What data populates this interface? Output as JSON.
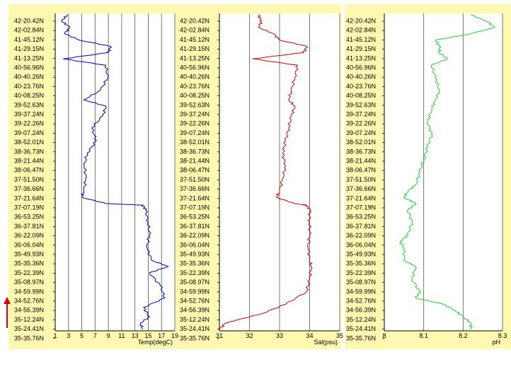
{
  "chart_data": [
    {
      "type": "line",
      "xlabel": "Temp(degC)",
      "xlim": [
        1,
        19
      ],
      "xticks": [
        1,
        3,
        5,
        7,
        9,
        11,
        13,
        15,
        17,
        19
      ],
      "color": "#0000c0",
      "profile": [
        [
          0.0,
          2.8
        ],
        [
          0.02,
          2.0
        ],
        [
          0.04,
          3.2
        ],
        [
          0.06,
          2.4
        ],
        [
          0.08,
          4.6
        ],
        [
          0.1,
          9.3
        ],
        [
          0.12,
          9.0
        ],
        [
          0.14,
          2.2
        ],
        [
          0.16,
          8.6
        ],
        [
          0.2,
          8.9
        ],
        [
          0.24,
          7.8
        ],
        [
          0.27,
          5.3
        ],
        [
          0.29,
          8.6
        ],
        [
          0.32,
          8.2
        ],
        [
          0.36,
          6.5
        ],
        [
          0.4,
          7.2
        ],
        [
          0.44,
          5.8
        ],
        [
          0.48,
          5.4
        ],
        [
          0.52,
          5.6
        ],
        [
          0.56,
          5.3
        ],
        [
          0.58,
          5.0
        ],
        [
          0.6,
          8.7
        ],
        [
          0.605,
          14.2
        ],
        [
          0.62,
          14.6
        ],
        [
          0.66,
          15.0
        ],
        [
          0.7,
          15.2
        ],
        [
          0.74,
          14.8
        ],
        [
          0.78,
          15.5
        ],
        [
          0.8,
          18.0
        ],
        [
          0.82,
          15.2
        ],
        [
          0.86,
          16.8
        ],
        [
          0.9,
          17.5
        ],
        [
          0.93,
          14.3
        ],
        [
          0.96,
          15.2
        ],
        [
          0.98,
          13.8
        ],
        [
          1.0,
          14.2
        ]
      ]
    },
    {
      "type": "line",
      "xlabel": "Sal(psu)",
      "xlim": [
        31,
        35
      ],
      "xticks": [
        31,
        32,
        33,
        34,
        35
      ],
      "color": "#cc0000",
      "profile": [
        [
          0.0,
          32.3
        ],
        [
          0.02,
          32.4
        ],
        [
          0.04,
          32.3
        ],
        [
          0.06,
          32.8
        ],
        [
          0.08,
          33.0
        ],
        [
          0.1,
          33.9
        ],
        [
          0.12,
          33.8
        ],
        [
          0.14,
          32.1
        ],
        [
          0.16,
          33.6
        ],
        [
          0.2,
          33.5
        ],
        [
          0.24,
          33.4
        ],
        [
          0.27,
          33.3
        ],
        [
          0.29,
          33.5
        ],
        [
          0.32,
          33.4
        ],
        [
          0.36,
          33.3
        ],
        [
          0.4,
          33.2
        ],
        [
          0.44,
          33.1
        ],
        [
          0.48,
          33.2
        ],
        [
          0.52,
          33.1
        ],
        [
          0.56,
          33.0
        ],
        [
          0.58,
          32.9
        ],
        [
          0.6,
          33.5
        ],
        [
          0.605,
          33.9
        ],
        [
          0.62,
          34.0
        ],
        [
          0.66,
          34.0
        ],
        [
          0.7,
          34.0
        ],
        [
          0.74,
          33.95
        ],
        [
          0.78,
          34.0
        ],
        [
          0.8,
          34.05
        ],
        [
          0.84,
          34.0
        ],
        [
          0.88,
          33.9
        ],
        [
          0.92,
          33.2
        ],
        [
          0.95,
          32.4
        ],
        [
          0.97,
          31.6
        ],
        [
          0.98,
          31.2
        ],
        [
          1.0,
          31.0
        ]
      ]
    },
    {
      "type": "line",
      "xlabel": "pH",
      "xlim": [
        8,
        8.3
      ],
      "xticks": [
        8,
        8.1,
        8.2,
        8.3
      ],
      "color": "#22cc33",
      "profile": [
        [
          0.0,
          8.22
        ],
        [
          0.02,
          8.26
        ],
        [
          0.04,
          8.28
        ],
        [
          0.06,
          8.22
        ],
        [
          0.08,
          8.13
        ],
        [
          0.1,
          8.14
        ],
        [
          0.12,
          8.14
        ],
        [
          0.14,
          8.16
        ],
        [
          0.16,
          8.12
        ],
        [
          0.2,
          8.13
        ],
        [
          0.24,
          8.14
        ],
        [
          0.27,
          8.13
        ],
        [
          0.3,
          8.12
        ],
        [
          0.34,
          8.11
        ],
        [
          0.38,
          8.12
        ],
        [
          0.42,
          8.11
        ],
        [
          0.46,
          8.1
        ],
        [
          0.5,
          8.09
        ],
        [
          0.54,
          8.08
        ],
        [
          0.56,
          8.06
        ],
        [
          0.58,
          8.05
        ],
        [
          0.6,
          8.08
        ],
        [
          0.62,
          8.06
        ],
        [
          0.66,
          8.07
        ],
        [
          0.7,
          8.06
        ],
        [
          0.72,
          8.04
        ],
        [
          0.74,
          8.05
        ],
        [
          0.78,
          8.05
        ],
        [
          0.8,
          8.08
        ],
        [
          0.84,
          8.07
        ],
        [
          0.88,
          8.09
        ],
        [
          0.9,
          8.08
        ],
        [
          0.92,
          8.15
        ],
        [
          0.94,
          8.18
        ],
        [
          0.96,
          8.2
        ],
        [
          0.98,
          8.22
        ],
        [
          1.0,
          8.22
        ]
      ]
    }
  ],
  "latitude_labels": [
    "42-20.42N",
    "42-02.84N",
    "41-45.12N",
    "41-29.15N",
    "41-13.25N",
    "40-56.96N",
    "40-40.26N",
    "40-23.76N",
    "40-08.25N",
    "39-52.63N",
    "39-37.24N",
    "39-22.26N",
    "39-07.24N",
    "38-52.01N",
    "38-36.73N",
    "38-21.44N",
    "38-06.47N",
    "37-51.50N",
    "37-36.66N",
    "37-21.64N",
    "37-07.19N",
    "36-53.25N",
    "36-37.81N",
    "36-22.09N",
    "36-06.04N",
    "35-49.93N",
    "35-35.36N",
    "35-22.39N",
    "35-08.97N",
    "34-59.99N",
    "34-52.76N",
    "34-56.39N",
    "35-12.24N",
    "35-24.41N",
    "35-35.76N"
  ],
  "colors": {
    "panel_background": "#fff8b0",
    "direction_arrow": "#e00000"
  }
}
